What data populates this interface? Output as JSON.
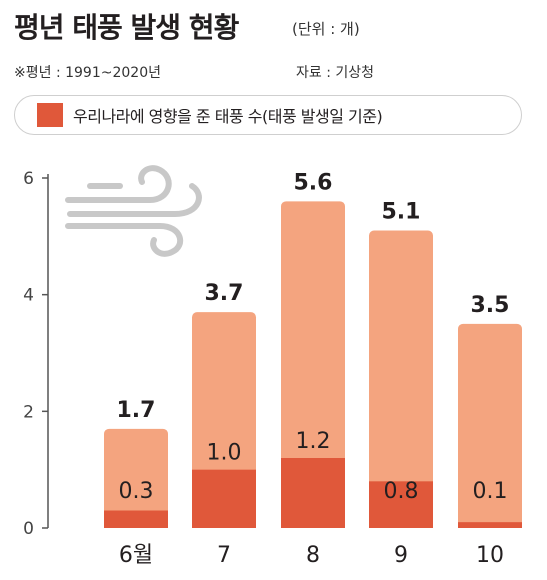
{
  "header": {
    "title": "평년 태풍 발생 현황",
    "unit": "(단위 : 개)",
    "note": "※평년 : 1991~2020년",
    "source": "자료 : 기상청"
  },
  "legend": {
    "label": "우리나라에 영향을 준 태풍 수(태풍 발생일 기준)"
  },
  "colors": {
    "total_bar": "#f4a47f",
    "affected_bar": "#e0583a",
    "axis": "#555555",
    "icon": "#c8c8c8"
  },
  "icon": {
    "name": "wind-icon"
  },
  "chart_data": {
    "type": "bar",
    "stacked": true,
    "categories": [
      "6월",
      "7",
      "8",
      "9",
      "10"
    ],
    "series": [
      {
        "name": "",
        "values": [
          1.7,
          3.7,
          5.6,
          5.1,
          3.5
        ]
      },
      {
        "name": "우리나라에 영향을 준 태풍 수(태풍 발생일 기준)",
        "values": [
          0.3,
          1.0,
          1.2,
          0.8,
          0.1
        ]
      }
    ],
    "data_labels_total": [
      "1.7",
      "3.7",
      "5.6",
      "5.1",
      "3.5"
    ],
    "data_labels_affected": [
      "0.3",
      "1.0",
      "1.2",
      "0.8",
      "0.1"
    ],
    "yticks": [
      "0",
      "2",
      "4",
      "6"
    ],
    "ylim": [
      0,
      6
    ],
    "grid": false
  }
}
